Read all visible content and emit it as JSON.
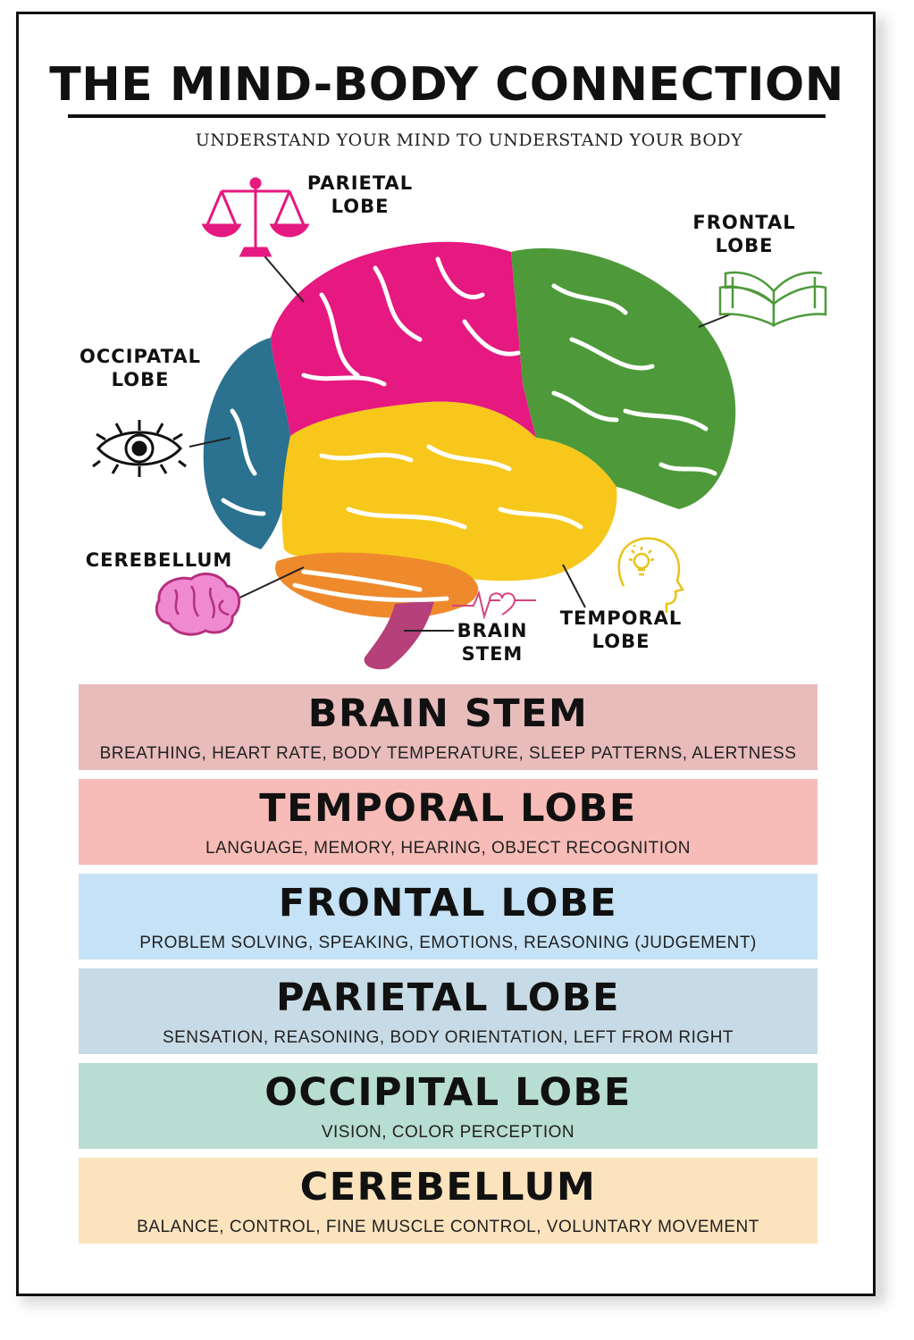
{
  "poster": {
    "title": "THE MIND-BODY CONNECTION",
    "subtitle": "UNDERSTAND YOUR MIND TO UNDERSTAND YOUR BODY"
  },
  "diagram": {
    "labels": {
      "parietal": [
        "PARIETAL",
        "LOBE"
      ],
      "frontal": [
        "FRONTAL",
        "LOBE"
      ],
      "occipital": [
        "OCCIPATAL",
        "LOBE"
      ],
      "cerebellum": [
        "CEREBELLUM"
      ],
      "brain_stem": [
        "BRAIN",
        "STEM"
      ],
      "temporal": [
        "TEMPORAL",
        "LOBE"
      ]
    },
    "colors": {
      "parietal": "#e5197f",
      "frontal": "#4e9a3a",
      "occipital": "#2a7290",
      "temporal": "#f7c71c",
      "cerebellum": "#ee8a2c",
      "brain_stem": "#b5407a"
    },
    "icons": [
      "scales-icon",
      "book-icon",
      "eye-icon",
      "brain-icon",
      "heartbeat-icon",
      "lightbulb-head-icon"
    ]
  },
  "panels": [
    {
      "title": "BRAIN STEM",
      "description": "BREATHING, HEART RATE, BODY TEMPERATURE, SLEEP PATTERNS, ALERTNESS",
      "color": "#e8bcbb"
    },
    {
      "title": "TEMPORAL LOBE",
      "description": "LANGUAGE, MEMORY, HEARING, OBJECT RECOGNITION",
      "color": "#f7bcb7"
    },
    {
      "title": "FRONTAL LOBE",
      "description": "PROBLEM SOLVING, SPEAKING, EMOTIONS, REASONING (JUDGEMENT)",
      "color": "#c5e2f6"
    },
    {
      "title": "PARIETAL LOBE",
      "description": "SENSATION, REASONING, BODY ORIENTATION, LEFT FROM RIGHT",
      "color": "#c7dbe6"
    },
    {
      "title": "OCCIPITAL LOBE",
      "description": "VISION, COLOR PERCEPTION",
      "color": "#b8ddd2"
    },
    {
      "title": "CEREBELLUM",
      "description": "BALANCE, CONTROL, FINE MUSCLE CONTROL, VOLUNTARY MOVEMENT",
      "color": "#fbe3bd"
    }
  ]
}
